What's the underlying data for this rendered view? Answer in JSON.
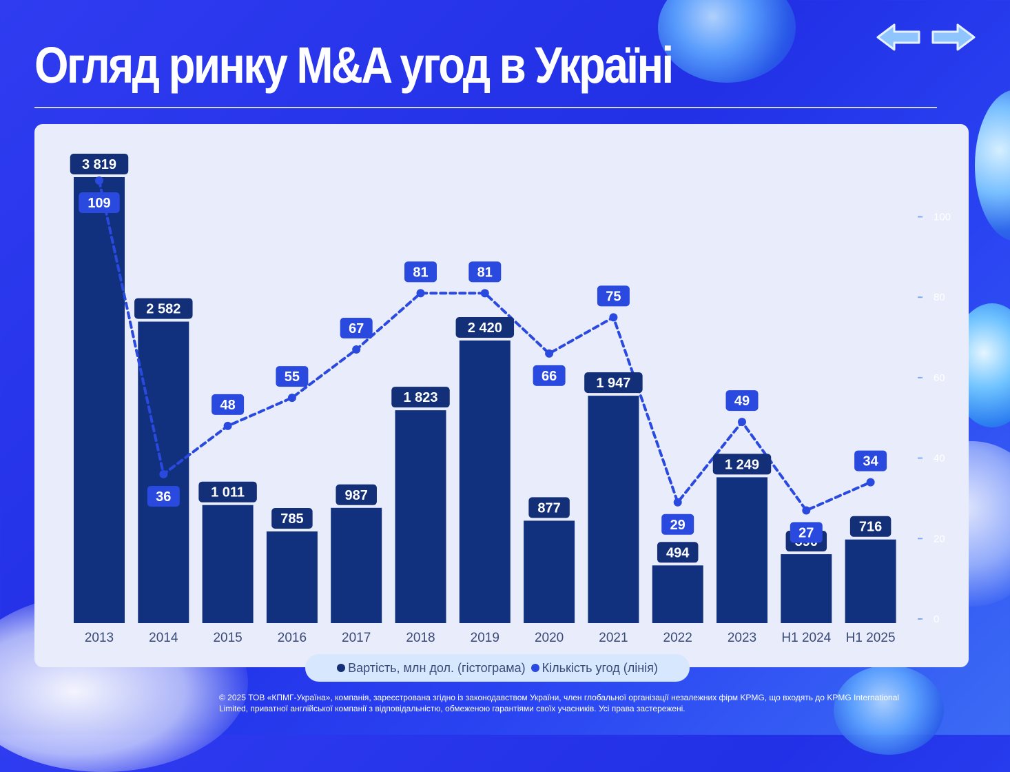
{
  "page": {
    "title": "Огляд ринку M&A угод в Україні",
    "footer": "© 2025 ТОВ «КПМГ-Україна», компанія, зареєстрована згідно із законодавством України, член глобальної організації незалежних фірм KPMG, що входять до KPMG International Limited, приватної англійської компанії з відповідальністю, обмеженою гарантіями своїх учасників. Усі права застережені."
  },
  "colors": {
    "bar": "#11317f",
    "line": "#2a49de",
    "bar_label_bg": "#132f78",
    "line_label_bg": "#2a49de",
    "axis_text": "#ffffff"
  },
  "navigation": {
    "prev_icon": "arrow-left-icon",
    "next_icon": "arrow-right-icon"
  },
  "legend": [
    {
      "label": "Вартість, млн дол. (гістограма)",
      "color": "#132f78"
    },
    {
      "label": "Кількість угод (лінія)",
      "color": "#2a49de"
    }
  ],
  "chart_data": {
    "type": "bar",
    "categories": [
      "2013",
      "2014",
      "2015",
      "2016",
      "2017",
      "2018",
      "2019",
      "2020",
      "2021",
      "2022",
      "2023",
      "H1 2024",
      "H1 2025"
    ],
    "series": [
      {
        "name": "Вартість, млн дол. (гістограма)",
        "type": "bar",
        "values": [
          3819,
          2582,
          1011,
          785,
          987,
          1823,
          2420,
          877,
          1947,
          494,
          1249,
          590,
          716
        ],
        "labels": [
          "3 819",
          "2 582",
          "1 011",
          "785",
          "987",
          "1 823",
          "2 420",
          "877",
          "1 947",
          "494",
          "1 249",
          "590",
          "716"
        ]
      },
      {
        "name": "Кількість угод (лінія)",
        "type": "line",
        "values": [
          109,
          36,
          48,
          55,
          67,
          81,
          81,
          66,
          75,
          29,
          49,
          27,
          34
        ],
        "labels": [
          "109",
          "36",
          "48",
          "55",
          "67",
          "81",
          "81",
          "66",
          "75",
          "29",
          "49",
          "27",
          "34"
        ]
      }
    ],
    "y2_ticks": [
      "0",
      "20",
      "40",
      "60",
      "80",
      "100"
    ],
    "y2lim": [
      0,
      100
    ],
    "grid": false,
    "legend_position": "bottom-center"
  }
}
